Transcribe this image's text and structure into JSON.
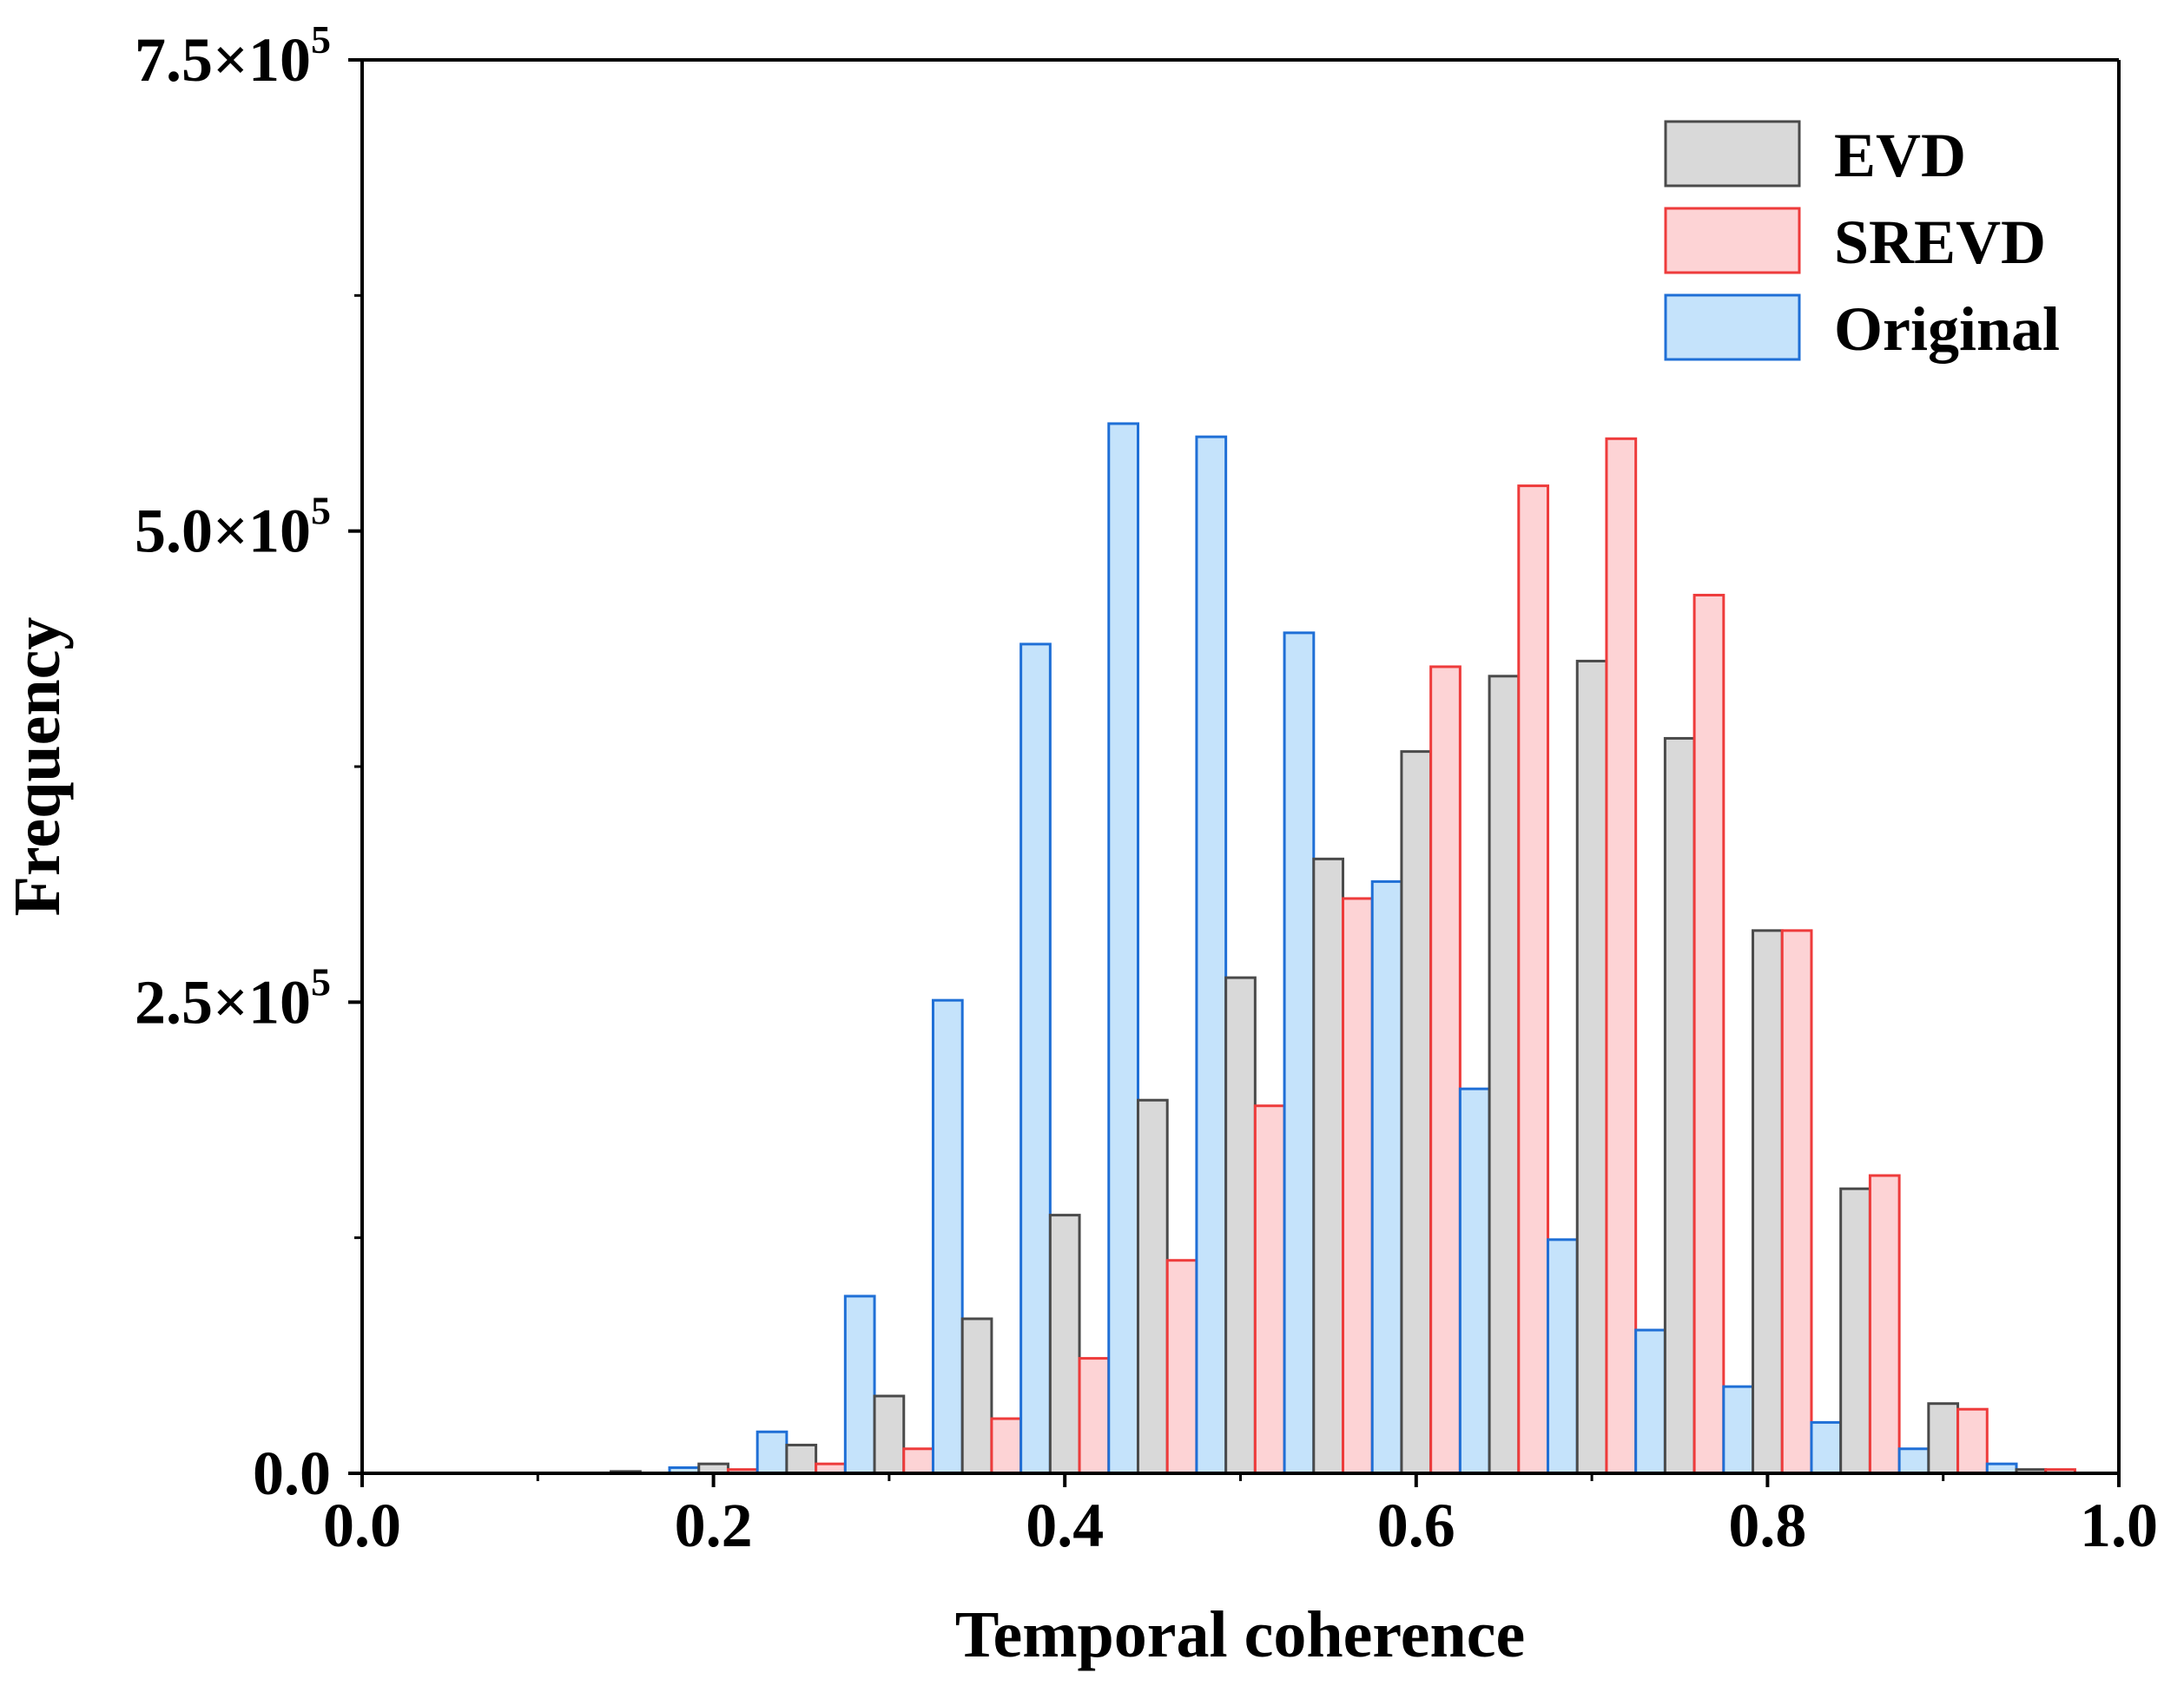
{
  "chart_data": {
    "type": "bar",
    "title": "",
    "xlabel": "Temporal coherence",
    "ylabel": "Frequency",
    "xlim": [
      0.0,
      1.0
    ],
    "ylim": [
      0,
      750000
    ],
    "x_ticks": [
      {
        "value": 0.0,
        "label": "0.0"
      },
      {
        "value": 0.2,
        "label": "0.2"
      },
      {
        "value": 0.4,
        "label": "0.4"
      },
      {
        "value": 0.6,
        "label": "0.6"
      },
      {
        "value": 0.8,
        "label": "0.8"
      },
      {
        "value": 1.0,
        "label": "1.0"
      }
    ],
    "y_ticks": [
      {
        "value": 0,
        "mantissa": "0.0",
        "exponent": ""
      },
      {
        "value": 250000,
        "mantissa": "2.5×10",
        "exponent": "5"
      },
      {
        "value": 500000,
        "mantissa": "5.0×10",
        "exponent": "5"
      },
      {
        "value": 750000,
        "mantissa": "7.5×10",
        "exponent": "5"
      }
    ],
    "legend_position": "top-right",
    "grid": false,
    "bin_width": 0.05,
    "bin_starts": [
      0.125,
      0.175,
      0.225,
      0.275,
      0.325,
      0.375,
      0.425,
      0.475,
      0.525,
      0.575,
      0.625,
      0.675,
      0.725,
      0.775,
      0.825,
      0.875,
      0.925
    ],
    "series": [
      {
        "name": "Original",
        "fill": "#c5e3fb",
        "stroke": "#1f6fd6",
        "values": [
          0,
          3000,
          22000,
          94000,
          251000,
          440000,
          557000,
          550000,
          446000,
          314000,
          204000,
          124000,
          76000,
          46000,
          27000,
          13000,
          5000
        ]
      },
      {
        "name": "EVD",
        "fill": "#d9d9d9",
        "stroke": "#4a4a4a",
        "values": [
          1000,
          5000,
          15000,
          41000,
          82000,
          137000,
          198000,
          263000,
          326000,
          383000,
          423000,
          431000,
          390000,
          288000,
          151000,
          37000,
          2000
        ]
      },
      {
        "name": "SREVD",
        "fill": "#fdd3d5",
        "stroke": "#ee3b3b",
        "values": [
          0,
          2000,
          5000,
          13000,
          29000,
          61000,
          113000,
          195000,
          305000,
          428000,
          524000,
          549000,
          466000,
          288000,
          158000,
          34000,
          2000
        ]
      }
    ],
    "legend": [
      {
        "name": "EVD",
        "fill": "#d9d9d9",
        "stroke": "#4a4a4a"
      },
      {
        "name": "SREVD",
        "fill": "#fdd3d5",
        "stroke": "#ee3b3b"
      },
      {
        "name": "Original",
        "fill": "#c5e3fb",
        "stroke": "#1f6fd6"
      }
    ]
  }
}
